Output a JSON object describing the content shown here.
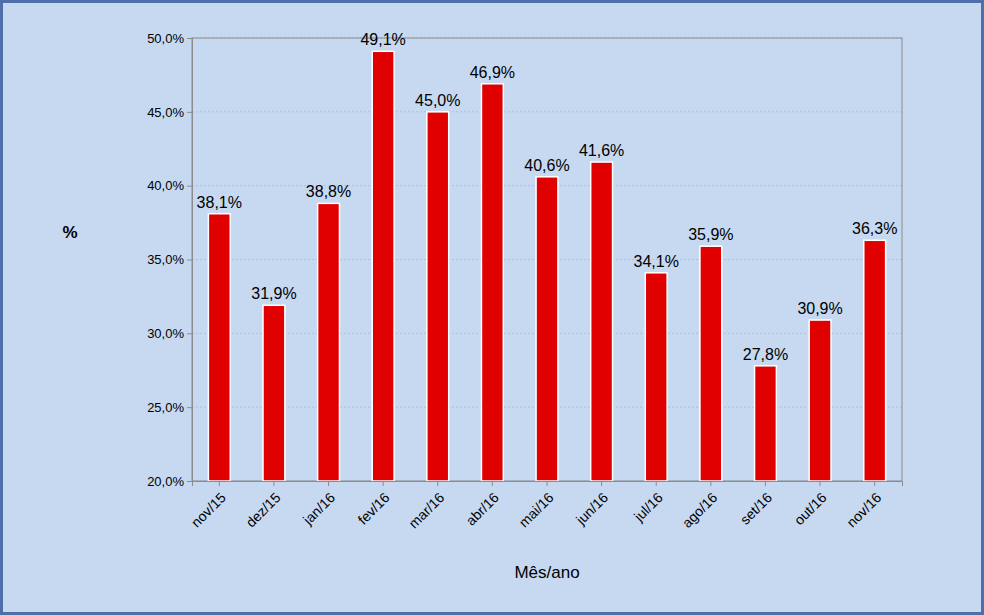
{
  "chart_data": {
    "type": "bar",
    "x_label": "Mês/ano",
    "y_label": "%",
    "categories": [
      "nov/15",
      "dez/15",
      "jan/16",
      "fev/16",
      "mar/16",
      "abr/16",
      "mai/16",
      "jun/16",
      "jul/16",
      "ago/16",
      "set/16",
      "out/16",
      "nov/16"
    ],
    "values": [
      38.1,
      31.9,
      38.8,
      49.1,
      45.0,
      46.9,
      40.6,
      41.6,
      34.1,
      35.9,
      27.8,
      30.9,
      36.3
    ],
    "value_labels": [
      "38,1%",
      "31,9%",
      "38,8%",
      "49,1%",
      "45,0%",
      "46,9%",
      "40,6%",
      "41,6%",
      "34,1%",
      "35,9%",
      "27,8%",
      "30,9%",
      "36,3%"
    ],
    "data_labels": true,
    "color": "#e00000",
    "ylim": [
      20,
      50
    ],
    "yticks": [
      {
        "value": 20,
        "label": "20,0%"
      },
      {
        "value": 25,
        "label": "25,0%"
      },
      {
        "value": 30,
        "label": "30,0%"
      },
      {
        "value": 35,
        "label": "35,0%"
      },
      {
        "value": 40,
        "label": "40,0%"
      },
      {
        "value": 45,
        "label": "45,0%"
      },
      {
        "value": 50,
        "label": "50,0%"
      }
    ],
    "grid": true
  }
}
